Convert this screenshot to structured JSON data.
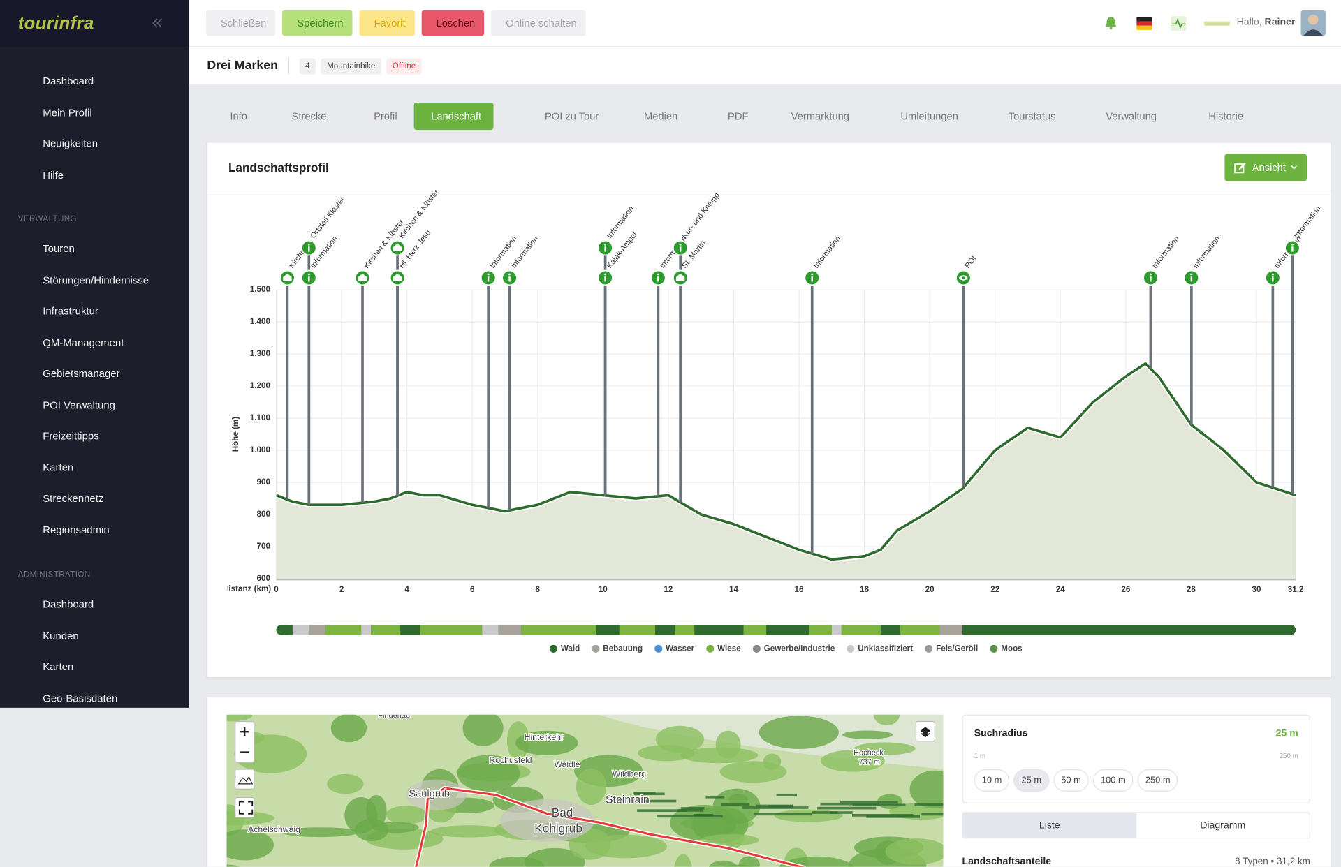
{
  "sidebar": {
    "logo": "tourinfra",
    "items": [
      {
        "label": "Dashboard"
      },
      {
        "label": "Mein Profil"
      },
      {
        "label": "Neuigkeiten"
      },
      {
        "label": "Hilfe",
        "submenu": true
      }
    ],
    "groups": [
      {
        "title": "VERWALTUNG",
        "items": [
          {
            "label": "Touren",
            "submenu": true
          },
          {
            "label": "Störungen/Hindernisse",
            "submenu": true
          },
          {
            "label": "Infrastruktur",
            "submenu": true
          },
          {
            "label": "QM-Management",
            "submenu": true
          },
          {
            "label": "Gebietsmanager",
            "submenu": true
          },
          {
            "label": "POI Verwaltung",
            "submenu": true
          },
          {
            "label": "Freizeittipps",
            "submenu": true
          },
          {
            "label": "Karten",
            "submenu": true
          },
          {
            "label": "Streckennetz",
            "submenu": true
          },
          {
            "label": "Regionsadmin",
            "submenu": true
          }
        ]
      },
      {
        "title": "ADMINISTRATION",
        "items": [
          {
            "label": "Dashboard"
          },
          {
            "label": "Kunden",
            "submenu": true
          },
          {
            "label": "Karten",
            "submenu": true
          },
          {
            "label": "Geo-Basisdaten",
            "submenu": true
          }
        ]
      }
    ]
  },
  "toolbar": {
    "actions": [
      {
        "label": "Schließen",
        "style": "muted"
      },
      {
        "label": "Speichern",
        "style": "save"
      },
      {
        "label": "Favorit",
        "style": "favorite"
      },
      {
        "label": "Löschen",
        "style": "delete"
      },
      {
        "label": "Online schalten",
        "style": "muted"
      }
    ],
    "greeting": "Hallo,",
    "user": "Rainer"
  },
  "tour": {
    "title": "Drei Marken",
    "badges": [
      {
        "label": "4",
        "style": "plain"
      },
      {
        "label": "Mountainbike",
        "style": "plain"
      },
      {
        "label": "Offline",
        "style": "danger"
      }
    ]
  },
  "tabs": [
    "Info",
    "Strecke",
    "Profil",
    "Landschaft",
    "POI zu Tour",
    "Medien",
    "PDF",
    "Vermarktung",
    "Umleitungen",
    "Tourstatus",
    "Verwaltung",
    "Historie"
  ],
  "active_tab": 3,
  "card": {
    "title": "Landschaftsprofil",
    "view_button": "Ansicht"
  },
  "chart_data": {
    "type": "area",
    "xlabel": "Distanz (km)",
    "ylabel": "Höhe (m)",
    "x": [
      0,
      0.5,
      1,
      2,
      3,
      3.5,
      4,
      4.5,
      5,
      6,
      6.5,
      7,
      8,
      9,
      10,
      11,
      12,
      13,
      14,
      15,
      16,
      17,
      18,
      18.5,
      19,
      20,
      21,
      22,
      23,
      24,
      25,
      26,
      26.6,
      27,
      28,
      29,
      30,
      31.2
    ],
    "values": [
      860,
      840,
      830,
      830,
      840,
      850,
      870,
      860,
      860,
      830,
      820,
      810,
      830,
      870,
      860,
      850,
      860,
      800,
      770,
      730,
      690,
      660,
      670,
      690,
      750,
      810,
      880,
      1000,
      1070,
      1040,
      1150,
      1230,
      1270,
      1230,
      1080,
      1000,
      900,
      860
    ],
    "color": "#2f6b2f",
    "fill": "#e3e7d8",
    "grid": true,
    "xlim": [
      0,
      31.2
    ],
    "ylim": [
      600,
      1500
    ],
    "xticks": [
      0,
      2,
      4,
      6,
      8,
      10,
      12,
      14,
      16,
      18,
      20,
      22,
      24,
      26,
      28,
      30,
      {
        "value": 31.2,
        "label": "31,2"
      }
    ],
    "yticks": [
      600,
      700,
      800,
      900,
      {
        "value": 1000,
        "label": "1.000"
      },
      {
        "value": 1100,
        "label": "1.100"
      },
      {
        "value": 1200,
        "label": "1.200"
      },
      {
        "value": 1300,
        "label": "1.300"
      },
      {
        "value": 1400,
        "label": "1.400"
      },
      {
        "value": 1500,
        "label": "1.500"
      }
    ],
    "pois": [
      {
        "x": 0.34,
        "label": "Kirche",
        "level": 0,
        "icon": "church"
      },
      {
        "x": 1.0,
        "label": "Information",
        "level": 0,
        "icon": "info"
      },
      {
        "x": 1.0,
        "label": "Ortsteil Kloster",
        "level": 1,
        "icon": "info"
      },
      {
        "x": 2.64,
        "label": "Kirchen & Klöster",
        "level": 0,
        "icon": "church"
      },
      {
        "x": 3.71,
        "label": "Hl. Herz Jesu",
        "level": 0,
        "icon": "church"
      },
      {
        "x": 3.71,
        "label": "Kirchen & Klöster",
        "level": 1,
        "icon": "church"
      },
      {
        "x": 6.49,
        "label": "Information",
        "level": 0,
        "icon": "info"
      },
      {
        "x": 7.14,
        "label": "Information",
        "level": 0,
        "icon": "info"
      },
      {
        "x": 10.07,
        "label": "Kajak-Ampel",
        "level": 0,
        "icon": "info"
      },
      {
        "x": 10.07,
        "label": "Information",
        "level": 1,
        "icon": "info"
      },
      {
        "x": 11.69,
        "label": "Information",
        "level": 0,
        "icon": "info"
      },
      {
        "x": 12.37,
        "label": "St. Martin",
        "level": 0,
        "icon": "church"
      },
      {
        "x": 12.37,
        "label": "Kur- und Kneipp",
        "level": 1,
        "icon": "info"
      },
      {
        "x": 16.4,
        "label": "Information",
        "level": 0,
        "icon": "info"
      },
      {
        "x": 21.03,
        "label": "POI",
        "level": 0,
        "icon": "eye"
      },
      {
        "x": 26.76,
        "label": "Information",
        "level": 0,
        "icon": "info"
      },
      {
        "x": 28.01,
        "label": "Information",
        "level": 0,
        "icon": "info"
      },
      {
        "x": 30.5,
        "label": "Information",
        "level": 0,
        "icon": "info"
      },
      {
        "x": 31.1,
        "label": "Information",
        "level": 1,
        "icon": "info"
      }
    ],
    "landscape": {
      "categories": [
        "Wald",
        "Bebauung",
        "Wasser",
        "Wiese",
        "Gewerbe/Industrie",
        "Unklassifiziert",
        "Fels/Geröll",
        "Moos"
      ],
      "colors": [
        "#2f6b2f",
        "#a8a39a",
        "#4a90d9",
        "#7cb342",
        "#8a8a8a",
        "#c9c9c9",
        "#9b9b9b",
        "#5e8f4e"
      ],
      "segments": [
        {
          "type": 0,
          "start": 0,
          "end": 0.5
        },
        {
          "type": 5,
          "start": 0.5,
          "end": 1.0
        },
        {
          "type": 1,
          "start": 1.0,
          "end": 1.5
        },
        {
          "type": 3,
          "start": 1.5,
          "end": 2.6
        },
        {
          "type": 5,
          "start": 2.6,
          "end": 2.9
        },
        {
          "type": 3,
          "start": 2.9,
          "end": 3.8
        },
        {
          "type": 0,
          "start": 3.8,
          "end": 4.4
        },
        {
          "type": 3,
          "start": 4.4,
          "end": 6.3
        },
        {
          "type": 5,
          "start": 6.3,
          "end": 6.8
        },
        {
          "type": 1,
          "start": 6.8,
          "end": 7.5
        },
        {
          "type": 3,
          "start": 7.5,
          "end": 9.8
        },
        {
          "type": 0,
          "start": 9.8,
          "end": 10.5
        },
        {
          "type": 3,
          "start": 10.5,
          "end": 11.6
        },
        {
          "type": 0,
          "start": 11.6,
          "end": 12.2
        },
        {
          "type": 3,
          "start": 12.2,
          "end": 12.8
        },
        {
          "type": 0,
          "start": 12.8,
          "end": 14.3
        },
        {
          "type": 3,
          "start": 14.3,
          "end": 15.0
        },
        {
          "type": 0,
          "start": 15.0,
          "end": 16.3
        },
        {
          "type": 3,
          "start": 16.3,
          "end": 17.0
        },
        {
          "type": 5,
          "start": 17.0,
          "end": 17.3
        },
        {
          "type": 3,
          "start": 17.3,
          "end": 18.5
        },
        {
          "type": 0,
          "start": 18.5,
          "end": 19.1
        },
        {
          "type": 3,
          "start": 19.1,
          "end": 20.3
        },
        {
          "type": 1,
          "start": 20.3,
          "end": 21.0
        },
        {
          "type": 0,
          "start": 21.0,
          "end": 31.2
        }
      ]
    }
  },
  "map": {
    "places": [
      "Findenau",
      "Hinterkehr",
      "Rochusfeld",
      "Waldle",
      "Saulgrub",
      "Wildberg",
      "Steinrain",
      "Bad",
      "Kohlgrub",
      "Achelschwaig",
      "Hocheck",
      "737 m"
    ]
  },
  "search": {
    "title": "Suchradius",
    "value_label": "25 m",
    "min_label": "1 m",
    "max_label": "250 m",
    "slider": {
      "min": 1,
      "max": 250,
      "value": 25
    },
    "options": [
      "10 m",
      "25 m",
      "50 m",
      "100 m",
      "250 m"
    ],
    "selected_option": 1,
    "views": [
      "Liste",
      "Diagramm"
    ],
    "active_view": 0,
    "shares_title": "Landschaftsanteile",
    "shares_summary": "8 Typen • 31,2 km"
  }
}
